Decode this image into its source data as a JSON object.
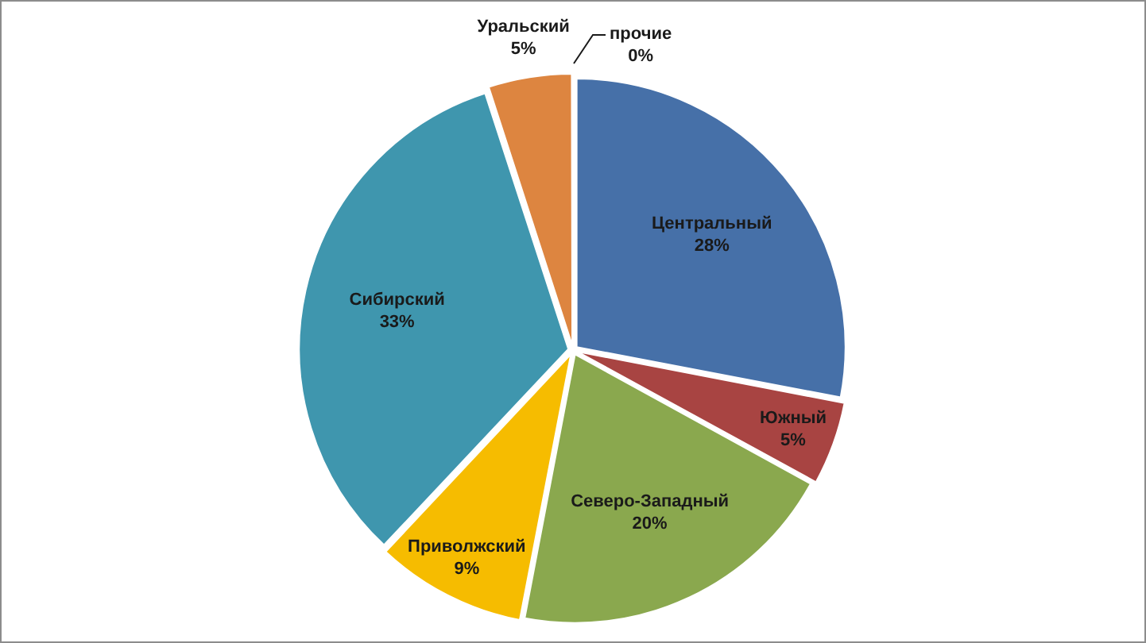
{
  "chart_data": {
    "type": "pie",
    "categories": [
      "Центральный",
      "Южный",
      "Северо-Западный",
      "Приволжский",
      "Сибирский",
      "Уральский",
      "прочие"
    ],
    "values": [
      28,
      5,
      20,
      9,
      33,
      5,
      0
    ],
    "colors": [
      "#4670a8",
      "#a84442",
      "#8aa84e",
      "#f6bc00",
      "#3f96ae",
      "#dd8540",
      "#8ea4c8"
    ],
    "value_labels": [
      "28%",
      "5%",
      "20%",
      "9%",
      "33%",
      "5%",
      "0%"
    ]
  }
}
